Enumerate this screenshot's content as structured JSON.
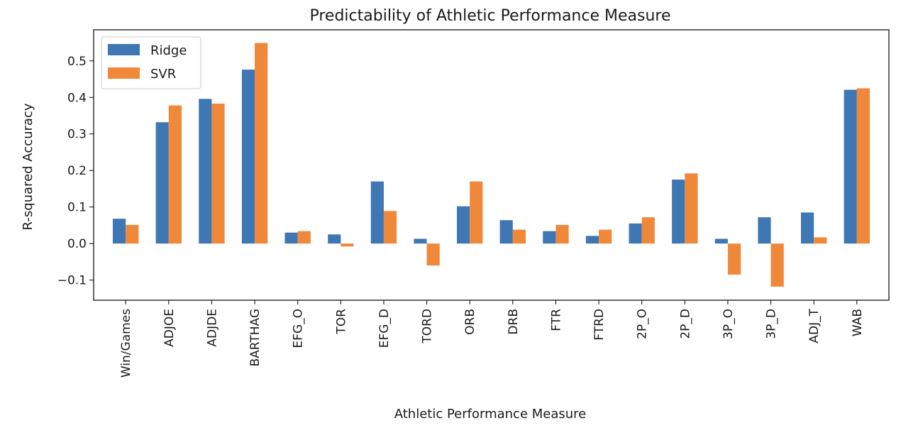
{
  "chart_data": {
    "type": "bar",
    "title": "Predictability of Athletic Performance Measure",
    "xlabel": "Athletic Performance Measure",
    "ylabel": "R-squared Accuracy",
    "ylim": [
      -0.155,
      0.585
    ],
    "yticks": [
      -0.1,
      0.0,
      0.1,
      0.2,
      0.3,
      0.4,
      0.5
    ],
    "ytick_labels": [
      "−0.1",
      "0.0",
      "0.1",
      "0.2",
      "0.3",
      "0.4",
      "0.5"
    ],
    "categories": [
      "Win/Games",
      "ADJOE",
      "ADJDE",
      "BARTHAG",
      "EFG_O",
      "TOR",
      "EFG_D",
      "TORD",
      "ORB",
      "DRB",
      "FTR",
      "FTRD",
      "2P_O",
      "2P_D",
      "3P_O",
      "3P_D",
      "ADJ_T",
      "WAB"
    ],
    "series": [
      {
        "name": "Ridge",
        "color": "#3f76b4",
        "values": [
          0.068,
          0.332,
          0.396,
          0.476,
          0.03,
          0.025,
          0.17,
          0.013,
          0.102,
          0.064,
          0.034,
          0.021,
          0.055,
          0.175,
          0.013,
          0.072,
          0.085,
          0.421
        ]
      },
      {
        "name": "SVR",
        "color": "#f0883a",
        "values": [
          0.051,
          0.378,
          0.383,
          0.549,
          0.034,
          -0.008,
          0.089,
          -0.06,
          0.17,
          0.038,
          0.051,
          0.038,
          0.072,
          0.192,
          -0.085,
          -0.118,
          0.017,
          0.425
        ]
      }
    ],
    "legend": {
      "position": "upper-left"
    },
    "grid": false
  }
}
